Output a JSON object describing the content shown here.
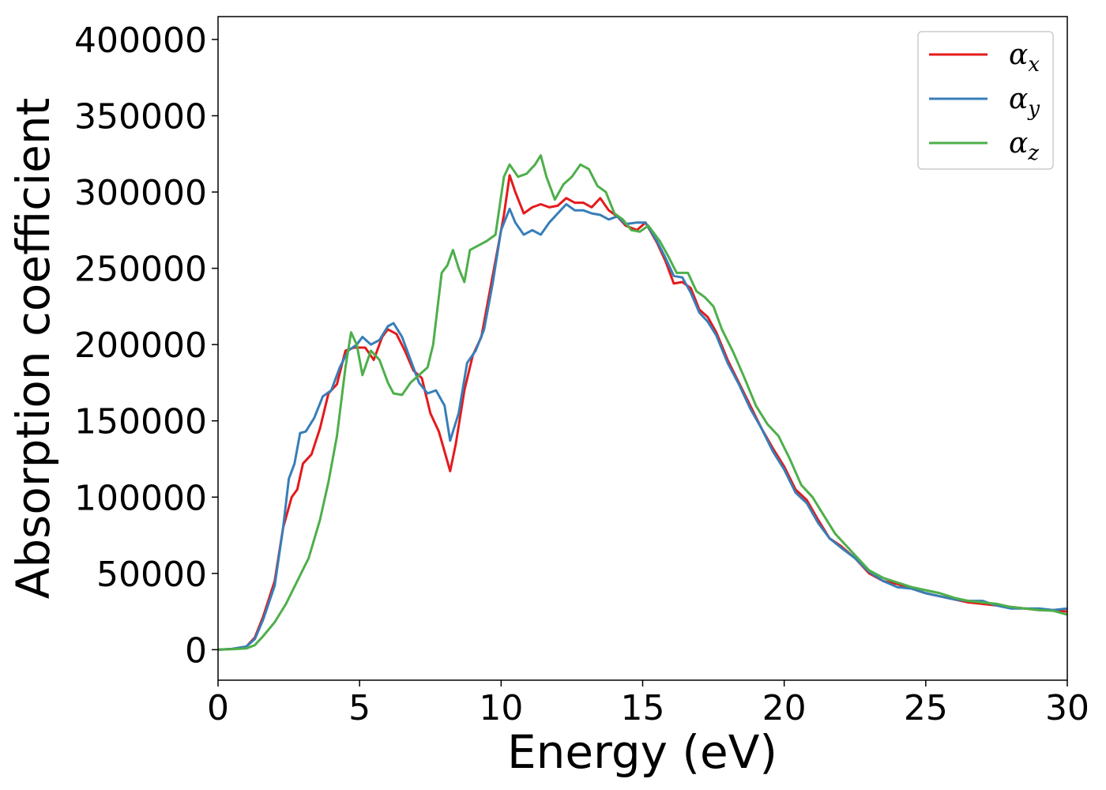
{
  "chart_data": {
    "type": "line",
    "title": "",
    "xlabel": "Energy (eV)",
    "ylabel": "Absorption coefficient",
    "xlim": [
      0,
      30
    ],
    "ylim": [
      -20000,
      415000
    ],
    "xticks": [
      0,
      5,
      10,
      15,
      20,
      25,
      30
    ],
    "yticks": [
      0,
      50000,
      100000,
      150000,
      200000,
      250000,
      300000,
      350000,
      400000
    ],
    "xtick_labels": [
      "0",
      "5",
      "10",
      "15",
      "20",
      "25",
      "30"
    ],
    "ytick_labels": [
      "0",
      "50000",
      "100000",
      "150000",
      "200000",
      "250000",
      "300000",
      "350000",
      "400000"
    ],
    "grid": false,
    "legend_position": "top-right",
    "series": [
      {
        "name": "α_x",
        "symbol": "α",
        "subscript": "x",
        "color": "#e41a1c",
        "points": [
          [
            0,
            0
          ],
          [
            0.5,
            500
          ],
          [
            1,
            2000
          ],
          [
            1.3,
            8000
          ],
          [
            1.6,
            22000
          ],
          [
            2.0,
            45000
          ],
          [
            2.3,
            80000
          ],
          [
            2.6,
            100000
          ],
          [
            2.8,
            105000
          ],
          [
            3.0,
            122000
          ],
          [
            3.3,
            128000
          ],
          [
            3.6,
            145000
          ],
          [
            3.9,
            168000
          ],
          [
            4.2,
            174000
          ],
          [
            4.5,
            196000
          ],
          [
            4.8,
            198000
          ],
          [
            5.2,
            198000
          ],
          [
            5.5,
            190000
          ],
          [
            5.8,
            205000
          ],
          [
            6.0,
            210000
          ],
          [
            6.3,
            207000
          ],
          [
            6.6,
            196000
          ],
          [
            6.9,
            183000
          ],
          [
            7.2,
            178000
          ],
          [
            7.5,
            155000
          ],
          [
            7.8,
            143000
          ],
          [
            8.0,
            130000
          ],
          [
            8.2,
            117000
          ],
          [
            8.4,
            135000
          ],
          [
            8.7,
            170000
          ],
          [
            9.0,
            193000
          ],
          [
            9.3,
            205000
          ],
          [
            9.6,
            235000
          ],
          [
            9.9,
            265000
          ],
          [
            10.1,
            285000
          ],
          [
            10.3,
            311000
          ],
          [
            10.5,
            300000
          ],
          [
            10.8,
            286000
          ],
          [
            11.1,
            290000
          ],
          [
            11.4,
            292000
          ],
          [
            11.7,
            290000
          ],
          [
            12.0,
            291000
          ],
          [
            12.3,
            296000
          ],
          [
            12.6,
            293000
          ],
          [
            12.9,
            293000
          ],
          [
            13.2,
            290000
          ],
          [
            13.5,
            296000
          ],
          [
            13.8,
            288000
          ],
          [
            14.1,
            284000
          ],
          [
            14.4,
            278000
          ],
          [
            14.8,
            275000
          ],
          [
            15.1,
            280000
          ],
          [
            15.5,
            267000
          ],
          [
            15.8,
            255000
          ],
          [
            16.1,
            240000
          ],
          [
            16.4,
            241000
          ],
          [
            16.7,
            237000
          ],
          [
            17.0,
            223000
          ],
          [
            17.3,
            218000
          ],
          [
            17.6,
            208000
          ],
          [
            18.0,
            190000
          ],
          [
            18.4,
            175000
          ],
          [
            18.8,
            160000
          ],
          [
            19.2,
            145000
          ],
          [
            19.6,
            132000
          ],
          [
            20.0,
            120000
          ],
          [
            20.4,
            105000
          ],
          [
            20.8,
            98000
          ],
          [
            21.2,
            85000
          ],
          [
            21.6,
            73000
          ],
          [
            22.0,
            68000
          ],
          [
            22.5,
            60000
          ],
          [
            23.0,
            50000
          ],
          [
            23.5,
            45000
          ],
          [
            24.0,
            43000
          ],
          [
            24.5,
            40000
          ],
          [
            25.0,
            37000
          ],
          [
            25.5,
            35000
          ],
          [
            26.0,
            33000
          ],
          [
            26.5,
            31000
          ],
          [
            27.0,
            30000
          ],
          [
            27.5,
            29000
          ],
          [
            28.0,
            28000
          ],
          [
            28.5,
            27000
          ],
          [
            29.0,
            26000
          ],
          [
            29.5,
            26000
          ],
          [
            30,
            25000
          ]
        ]
      },
      {
        "name": "α_y",
        "symbol": "α",
        "subscript": "y",
        "color": "#377eb8",
        "points": [
          [
            0,
            0
          ],
          [
            0.5,
            500
          ],
          [
            1,
            2000
          ],
          [
            1.3,
            7000
          ],
          [
            1.6,
            20000
          ],
          [
            2.0,
            42000
          ],
          [
            2.3,
            80000
          ],
          [
            2.5,
            112000
          ],
          [
            2.7,
            122000
          ],
          [
            2.9,
            142000
          ],
          [
            3.1,
            143000
          ],
          [
            3.4,
            152000
          ],
          [
            3.7,
            166000
          ],
          [
            4.0,
            170000
          ],
          [
            4.3,
            185000
          ],
          [
            4.6,
            196000
          ],
          [
            4.9,
            200000
          ],
          [
            5.1,
            205000
          ],
          [
            5.4,
            200000
          ],
          [
            5.7,
            203000
          ],
          [
            6.0,
            212000
          ],
          [
            6.2,
            214000
          ],
          [
            6.5,
            205000
          ],
          [
            6.8,
            190000
          ],
          [
            7.1,
            175000
          ],
          [
            7.4,
            168000
          ],
          [
            7.7,
            170000
          ],
          [
            8.0,
            160000
          ],
          [
            8.2,
            137000
          ],
          [
            8.5,
            155000
          ],
          [
            8.8,
            188000
          ],
          [
            9.1,
            196000
          ],
          [
            9.4,
            210000
          ],
          [
            9.7,
            240000
          ],
          [
            10.0,
            275000
          ],
          [
            10.3,
            289000
          ],
          [
            10.5,
            280000
          ],
          [
            10.8,
            272000
          ],
          [
            11.1,
            275000
          ],
          [
            11.4,
            272000
          ],
          [
            11.7,
            280000
          ],
          [
            12.0,
            286000
          ],
          [
            12.3,
            292000
          ],
          [
            12.6,
            288000
          ],
          [
            12.9,
            288000
          ],
          [
            13.2,
            286000
          ],
          [
            13.5,
            285000
          ],
          [
            13.8,
            282000
          ],
          [
            14.1,
            284000
          ],
          [
            14.4,
            279000
          ],
          [
            14.8,
            280000
          ],
          [
            15.1,
            280000
          ],
          [
            15.5,
            268000
          ],
          [
            15.8,
            257000
          ],
          [
            16.1,
            245000
          ],
          [
            16.4,
            244000
          ],
          [
            16.7,
            234000
          ],
          [
            17.0,
            221000
          ],
          [
            17.3,
            215000
          ],
          [
            17.6,
            206000
          ],
          [
            18.0,
            188000
          ],
          [
            18.4,
            174000
          ],
          [
            18.8,
            158000
          ],
          [
            19.2,
            145000
          ],
          [
            19.6,
            130000
          ],
          [
            20.0,
            118000
          ],
          [
            20.4,
            103000
          ],
          [
            20.8,
            96000
          ],
          [
            21.2,
            83000
          ],
          [
            21.6,
            73000
          ],
          [
            22.0,
            67000
          ],
          [
            22.5,
            60000
          ],
          [
            23.0,
            51000
          ],
          [
            23.5,
            45000
          ],
          [
            24.0,
            41000
          ],
          [
            24.5,
            40000
          ],
          [
            25.0,
            37000
          ],
          [
            25.5,
            35000
          ],
          [
            26.0,
            33000
          ],
          [
            26.5,
            32000
          ],
          [
            27.0,
            32000
          ],
          [
            27.5,
            29000
          ],
          [
            28.0,
            27000
          ],
          [
            28.5,
            27000
          ],
          [
            29.0,
            27000
          ],
          [
            29.5,
            26000
          ],
          [
            30,
            27000
          ]
        ]
      },
      {
        "name": "α_z",
        "symbol": "α",
        "subscript": "z",
        "color": "#4daf4a",
        "points": [
          [
            0,
            0
          ],
          [
            0.5,
            300
          ],
          [
            1,
            800
          ],
          [
            1.3,
            3000
          ],
          [
            1.6,
            9000
          ],
          [
            2.0,
            18000
          ],
          [
            2.4,
            30000
          ],
          [
            2.8,
            45000
          ],
          [
            3.2,
            60000
          ],
          [
            3.6,
            85000
          ],
          [
            3.9,
            110000
          ],
          [
            4.2,
            140000
          ],
          [
            4.5,
            185000
          ],
          [
            4.7,
            208000
          ],
          [
            4.9,
            200000
          ],
          [
            5.1,
            180000
          ],
          [
            5.4,
            196000
          ],
          [
            5.7,
            190000
          ],
          [
            6.0,
            175000
          ],
          [
            6.2,
            168000
          ],
          [
            6.5,
            167000
          ],
          [
            6.8,
            175000
          ],
          [
            7.1,
            180000
          ],
          [
            7.4,
            185000
          ],
          [
            7.6,
            200000
          ],
          [
            7.9,
            247000
          ],
          [
            8.1,
            252000
          ],
          [
            8.3,
            262000
          ],
          [
            8.5,
            250000
          ],
          [
            8.7,
            241000
          ],
          [
            8.9,
            262000
          ],
          [
            9.2,
            265000
          ],
          [
            9.5,
            268000
          ],
          [
            9.8,
            272000
          ],
          [
            10.1,
            310000
          ],
          [
            10.3,
            318000
          ],
          [
            10.6,
            310000
          ],
          [
            10.9,
            312000
          ],
          [
            11.2,
            318000
          ],
          [
            11.4,
            324000
          ],
          [
            11.6,
            310000
          ],
          [
            11.9,
            295000
          ],
          [
            12.2,
            305000
          ],
          [
            12.5,
            310000
          ],
          [
            12.8,
            318000
          ],
          [
            13.1,
            315000
          ],
          [
            13.4,
            304000
          ],
          [
            13.7,
            300000
          ],
          [
            14.0,
            286000
          ],
          [
            14.3,
            282000
          ],
          [
            14.6,
            275000
          ],
          [
            14.9,
            274000
          ],
          [
            15.2,
            278000
          ],
          [
            15.6,
            268000
          ],
          [
            15.9,
            258000
          ],
          [
            16.2,
            247000
          ],
          [
            16.6,
            247000
          ],
          [
            16.9,
            235000
          ],
          [
            17.2,
            231000
          ],
          [
            17.5,
            225000
          ],
          [
            17.8,
            210000
          ],
          [
            18.2,
            195000
          ],
          [
            18.6,
            178000
          ],
          [
            19.0,
            160000
          ],
          [
            19.4,
            148000
          ],
          [
            19.8,
            140000
          ],
          [
            20.2,
            125000
          ],
          [
            20.6,
            108000
          ],
          [
            21.0,
            100000
          ],
          [
            21.4,
            88000
          ],
          [
            21.8,
            76000
          ],
          [
            22.2,
            68000
          ],
          [
            22.6,
            60000
          ],
          [
            23.0,
            52000
          ],
          [
            23.5,
            47000
          ],
          [
            24.0,
            44000
          ],
          [
            24.5,
            41000
          ],
          [
            25.0,
            39000
          ],
          [
            25.5,
            37000
          ],
          [
            26.0,
            34000
          ],
          [
            26.5,
            32000
          ],
          [
            27.0,
            31000
          ],
          [
            27.5,
            30000
          ],
          [
            28.0,
            28000
          ],
          [
            28.5,
            27000
          ],
          [
            29.0,
            26000
          ],
          [
            29.5,
            25500
          ],
          [
            30,
            23000
          ]
        ]
      }
    ]
  }
}
